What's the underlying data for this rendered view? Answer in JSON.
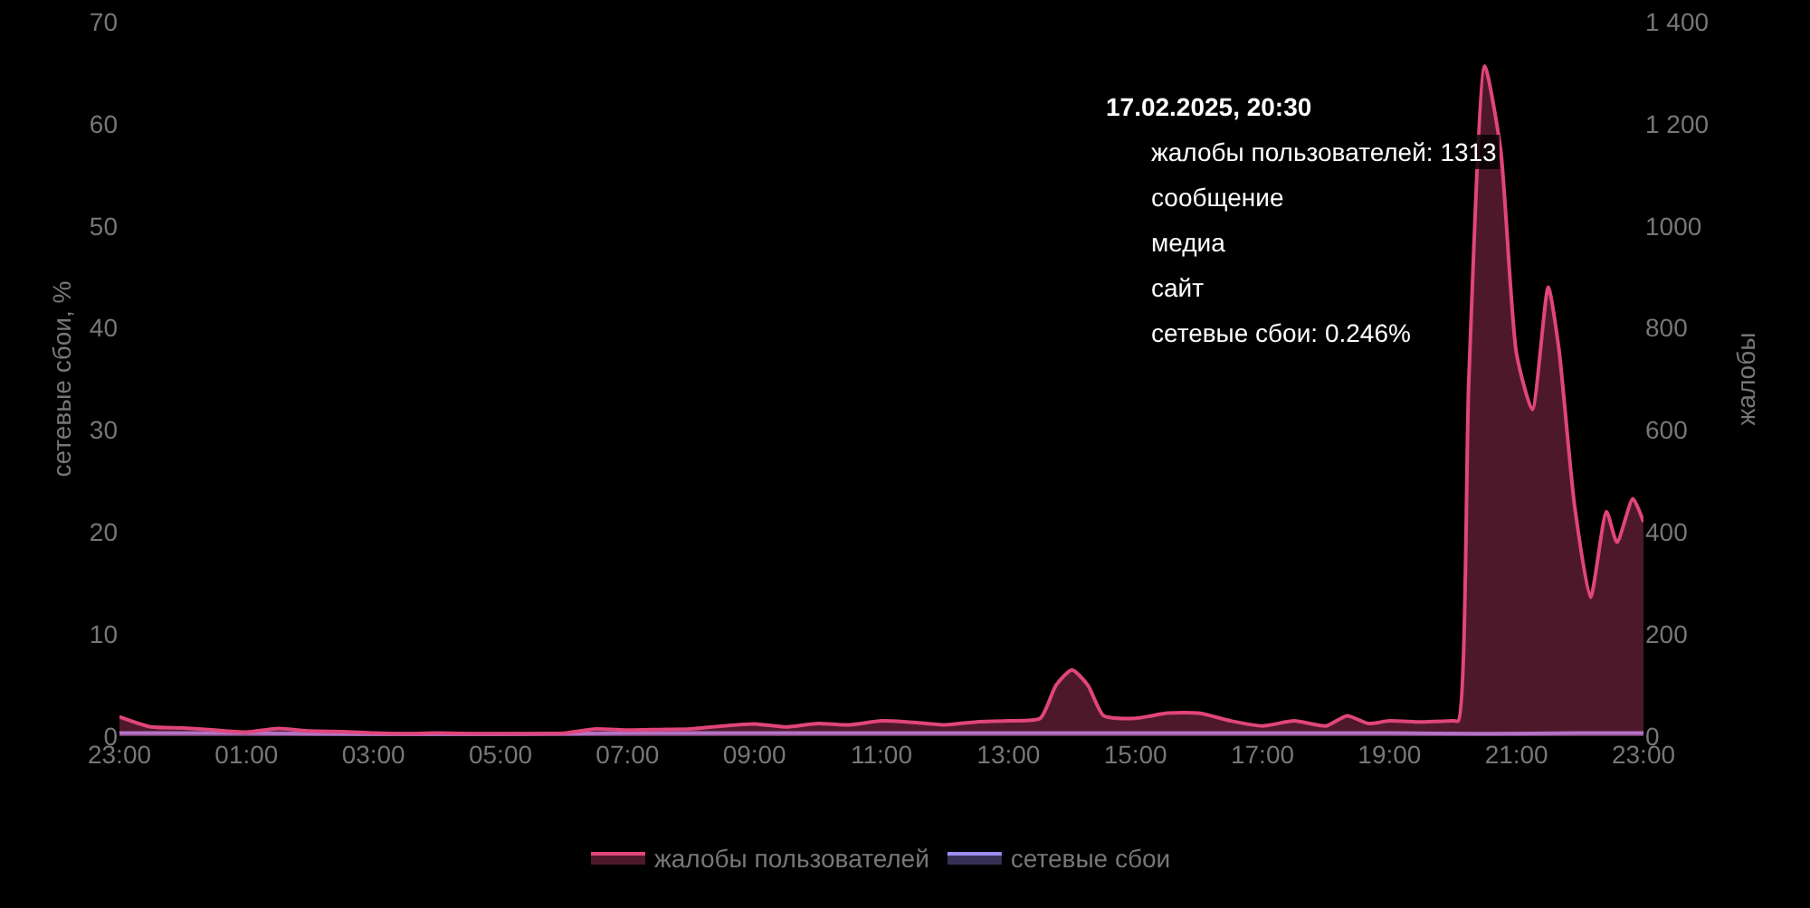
{
  "chart_data": {
    "type": "area",
    "ylabel": "сетевые сбои, %",
    "y2label": "жалобы",
    "xlim": [
      "2025-02-16T23:00",
      "2025-02-17T23:00"
    ],
    "xticks": [
      {
        "value": "2025-02-16T23:00",
        "label": "23:00"
      },
      {
        "value": "2025-02-17T01:00",
        "label": "01:00"
      },
      {
        "value": "2025-02-17T03:00",
        "label": "03:00"
      },
      {
        "value": "2025-02-17T05:00",
        "label": "05:00"
      },
      {
        "value": "2025-02-17T07:00",
        "label": "07:00"
      },
      {
        "value": "2025-02-17T09:00",
        "label": "09:00"
      },
      {
        "value": "2025-02-17T11:00",
        "label": "11:00"
      },
      {
        "value": "2025-02-17T13:00",
        "label": "13:00"
      },
      {
        "value": "2025-02-17T15:00",
        "label": "15:00"
      },
      {
        "value": "2025-02-17T17:00",
        "label": "17:00"
      },
      {
        "value": "2025-02-17T19:00",
        "label": "19:00"
      },
      {
        "value": "2025-02-17T21:00",
        "label": "21:00"
      },
      {
        "value": "2025-02-17T23:00",
        "label": "23:00"
      }
    ],
    "ylim": [
      0,
      70
    ],
    "yticks": [
      0,
      10,
      20,
      30,
      40,
      50,
      60,
      70
    ],
    "y2lim": [
      0,
      1400
    ],
    "y2ticks": [
      0,
      200,
      400,
      600,
      800,
      1000,
      {
        "value": 1200,
        "label": "1 200"
      },
      {
        "value": 1400,
        "label": "1 400"
      }
    ],
    "grid": false,
    "legend": "bottom",
    "marker": "none",
    "line_style": "solid",
    "series": [
      {
        "name": "жалобы пользователей",
        "color": "#e0457b",
        "axis": "y2",
        "x": [
          "2025-02-16T23:00",
          "2025-02-16T23:30",
          "2025-02-17T00:00",
          "2025-02-17T00:30",
          "2025-02-17T01:00",
          "2025-02-17T01:30",
          "2025-02-17T02:00",
          "2025-02-17T02:30",
          "2025-02-17T03:00",
          "2025-02-17T03:30",
          "2025-02-17T04:00",
          "2025-02-17T04:30",
          "2025-02-17T05:00",
          "2025-02-17T05:30",
          "2025-02-17T06:00",
          "2025-02-17T06:30",
          "2025-02-17T07:00",
          "2025-02-17T07:30",
          "2025-02-17T08:00",
          "2025-02-17T08:30",
          "2025-02-17T09:00",
          "2025-02-17T09:30",
          "2025-02-17T10:00",
          "2025-02-17T10:30",
          "2025-02-17T11:00",
          "2025-02-17T11:30",
          "2025-02-17T12:00",
          "2025-02-17T12:30",
          "2025-02-17T13:00",
          "2025-02-17T13:30",
          "2025-02-17T13:45",
          "2025-02-17T14:00",
          "2025-02-17T14:15",
          "2025-02-17T14:30",
          "2025-02-17T15:00",
          "2025-02-17T15:30",
          "2025-02-17T16:00",
          "2025-02-17T16:30",
          "2025-02-17T17:00",
          "2025-02-17T17:30",
          "2025-02-17T18:00",
          "2025-02-17T18:20",
          "2025-02-17T18:40",
          "2025-02-17T19:00",
          "2025-02-17T19:30",
          "2025-02-17T20:00",
          "2025-02-17T20:05",
          "2025-02-17T20:15",
          "2025-02-17T20:30",
          "2025-02-17T20:45",
          "2025-02-17T21:00",
          "2025-02-17T21:15",
          "2025-02-17T21:30",
          "2025-02-17T21:40",
          "2025-02-17T21:55",
          "2025-02-17T22:10",
          "2025-02-17T22:25",
          "2025-02-17T22:35",
          "2025-02-17T22:50",
          "2025-02-17T23:00"
        ],
        "values": [
          38,
          18,
          16,
          12,
          8,
          15,
          10,
          9,
          6,
          5,
          6,
          5,
          5,
          5,
          6,
          14,
          12,
          13,
          14,
          20,
          24,
          18,
          25,
          22,
          30,
          27,
          22,
          28,
          30,
          35,
          100,
          130,
          100,
          40,
          35,
          45,
          45,
          30,
          20,
          30,
          20,
          40,
          25,
          30,
          28,
          30,
          30,
          700,
          1313,
          1150,
          750,
          640,
          880,
          760,
          450,
          272,
          440,
          380,
          465,
          420
        ]
      },
      {
        "name": "сетевые сбои",
        "color": "#9b8cf0",
        "axis": "y",
        "x": [
          "2025-02-16T23:00",
          "2025-02-17T01:00",
          "2025-02-17T03:00",
          "2025-02-17T05:00",
          "2025-02-17T07:00",
          "2025-02-17T09:00",
          "2025-02-17T11:00",
          "2025-02-17T13:00",
          "2025-02-17T15:00",
          "2025-02-17T17:00",
          "2025-02-17T19:00",
          "2025-02-17T20:30",
          "2025-02-17T22:00",
          "2025-02-17T23:00"
        ],
        "values": [
          0.3,
          0.3,
          0.2,
          0.2,
          0.3,
          0.3,
          0.3,
          0.3,
          0.3,
          0.3,
          0.3,
          0.246,
          0.3,
          0.3
        ]
      }
    ],
    "annotations": [
      "17.02.2025, 20:30",
      "жалобы пользователей: 1313",
      "сообщение",
      "медиа",
      "сайт",
      "сетевые сбои: 0.246%"
    ]
  }
}
